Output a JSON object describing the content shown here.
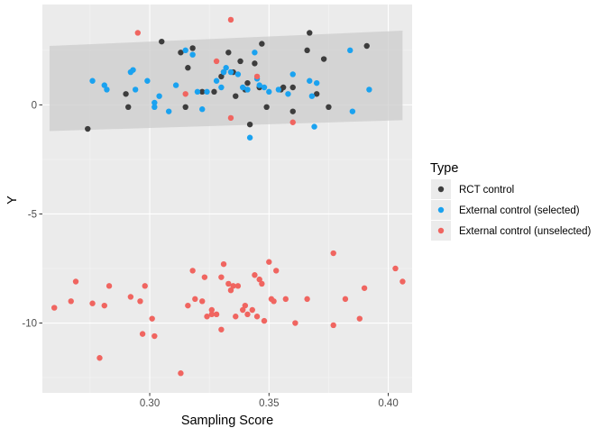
{
  "chart_data": {
    "type": "scatter",
    "title": "",
    "xlabel": "Sampling Score",
    "ylabel": "Y",
    "xlim": [
      0.255,
      0.41
    ],
    "ylim": [
      -13.2,
      4.6
    ],
    "x_ticks": [
      0.3,
      0.35,
      0.4
    ],
    "x_tick_labels": [
      "0.30",
      "0.35",
      "0.40"
    ],
    "y_ticks": [
      0,
      -5,
      -10
    ],
    "y_tick_labels": [
      "0",
      "-5",
      "-10"
    ],
    "grid": true,
    "legend": {
      "title": "Type",
      "position": "right",
      "entries": [
        "RCT control",
        "External control (selected)",
        "External control (unselected)"
      ]
    },
    "confidence_band": {
      "x": [
        0.258,
        0.406
      ],
      "upper": [
        2.7,
        3.4
      ],
      "lower": [
        -1.2,
        -0.7
      ],
      "fill": "#cccccc"
    },
    "series": [
      {
        "name": "RCT control",
        "color": "#3d3d3d",
        "points": [
          [
            0.274,
            -1.1
          ],
          [
            0.29,
            0.5
          ],
          [
            0.291,
            -0.1
          ],
          [
            0.305,
            2.9
          ],
          [
            0.313,
            2.4
          ],
          [
            0.315,
            -0.1
          ],
          [
            0.316,
            1.7
          ],
          [
            0.318,
            2.6
          ],
          [
            0.322,
            0.6
          ],
          [
            0.327,
            0.6
          ],
          [
            0.33,
            1.3
          ],
          [
            0.331,
            1.5
          ],
          [
            0.333,
            2.4
          ],
          [
            0.335,
            1.5
          ],
          [
            0.336,
            0.4
          ],
          [
            0.338,
            2.0
          ],
          [
            0.34,
            0.7
          ],
          [
            0.341,
            1.0
          ],
          [
            0.342,
            -0.9
          ],
          [
            0.344,
            1.9
          ],
          [
            0.346,
            0.8
          ],
          [
            0.347,
            2.8
          ],
          [
            0.349,
            -0.1
          ],
          [
            0.355,
            0.7
          ],
          [
            0.356,
            0.8
          ],
          [
            0.36,
            0.8
          ],
          [
            0.36,
            -0.3
          ],
          [
            0.366,
            2.5
          ],
          [
            0.367,
            3.3
          ],
          [
            0.37,
            0.5
          ],
          [
            0.373,
            2.1
          ],
          [
            0.375,
            -0.1
          ],
          [
            0.391,
            2.7
          ]
        ]
      },
      {
        "name": "External control (selected)",
        "color": "#1aa2f0",
        "points": [
          [
            0.276,
            1.1
          ],
          [
            0.281,
            0.9
          ],
          [
            0.282,
            0.7
          ],
          [
            0.292,
            1.5
          ],
          [
            0.293,
            1.6
          ],
          [
            0.294,
            0.7
          ],
          [
            0.299,
            1.1
          ],
          [
            0.302,
            -0.1
          ],
          [
            0.302,
            0.1
          ],
          [
            0.304,
            0.4
          ],
          [
            0.308,
            -0.3
          ],
          [
            0.311,
            0.9
          ],
          [
            0.315,
            2.5
          ],
          [
            0.318,
            2.3
          ],
          [
            0.32,
            0.6
          ],
          [
            0.322,
            -0.2
          ],
          [
            0.324,
            0.6
          ],
          [
            0.328,
            1.1
          ],
          [
            0.33,
            0.8
          ],
          [
            0.331,
            1.5
          ],
          [
            0.332,
            1.7
          ],
          [
            0.334,
            1.5
          ],
          [
            0.337,
            1.4
          ],
          [
            0.339,
            0.8
          ],
          [
            0.341,
            0.7
          ],
          [
            0.342,
            -1.5
          ],
          [
            0.344,
            2.4
          ],
          [
            0.345,
            1.2
          ],
          [
            0.346,
            0.9
          ],
          [
            0.348,
            0.8
          ],
          [
            0.35,
            0.6
          ],
          [
            0.354,
            0.7
          ],
          [
            0.358,
            0.5
          ],
          [
            0.36,
            1.4
          ],
          [
            0.367,
            1.1
          ],
          [
            0.368,
            0.4
          ],
          [
            0.369,
            -1.0
          ],
          [
            0.37,
            1.0
          ],
          [
            0.384,
            2.5
          ],
          [
            0.385,
            -0.3
          ],
          [
            0.392,
            0.7
          ]
        ]
      },
      {
        "name": "External control (unselected)",
        "color": "#f06560",
        "points": [
          [
            0.295,
            3.3
          ],
          [
            0.315,
            0.5
          ],
          [
            0.328,
            2.0
          ],
          [
            0.334,
            3.9
          ],
          [
            0.334,
            -0.6
          ],
          [
            0.345,
            1.3
          ],
          [
            0.36,
            -0.8
          ],
          [
            0.26,
            -9.3
          ],
          [
            0.267,
            -9.0
          ],
          [
            0.269,
            -8.1
          ],
          [
            0.276,
            -9.1
          ],
          [
            0.279,
            -11.6
          ],
          [
            0.281,
            -9.2
          ],
          [
            0.283,
            -8.3
          ],
          [
            0.292,
            -8.8
          ],
          [
            0.296,
            -9.0
          ],
          [
            0.297,
            -10.5
          ],
          [
            0.298,
            -8.3
          ],
          [
            0.301,
            -9.8
          ],
          [
            0.302,
            -10.6
          ],
          [
            0.313,
            -12.3
          ],
          [
            0.316,
            -9.2
          ],
          [
            0.318,
            -7.6
          ],
          [
            0.319,
            -8.9
          ],
          [
            0.322,
            -9.0
          ],
          [
            0.323,
            -7.9
          ],
          [
            0.324,
            -9.7
          ],
          [
            0.326,
            -9.6
          ],
          [
            0.326,
            -9.4
          ],
          [
            0.328,
            -9.6
          ],
          [
            0.33,
            -10.3
          ],
          [
            0.33,
            -7.9
          ],
          [
            0.331,
            -7.3
          ],
          [
            0.333,
            -8.2
          ],
          [
            0.334,
            -8.5
          ],
          [
            0.335,
            -8.3
          ],
          [
            0.336,
            -9.7
          ],
          [
            0.337,
            -8.3
          ],
          [
            0.339,
            -9.4
          ],
          [
            0.34,
            -9.2
          ],
          [
            0.341,
            -9.6
          ],
          [
            0.343,
            -9.4
          ],
          [
            0.344,
            -7.8
          ],
          [
            0.345,
            -9.7
          ],
          [
            0.346,
            -8.0
          ],
          [
            0.347,
            -8.2
          ],
          [
            0.348,
            -9.9
          ],
          [
            0.35,
            -7.2
          ],
          [
            0.351,
            -8.9
          ],
          [
            0.352,
            -9.0
          ],
          [
            0.353,
            -7.6
          ],
          [
            0.357,
            -8.9
          ],
          [
            0.361,
            -10.0
          ],
          [
            0.366,
            -8.9
          ],
          [
            0.377,
            -6.8
          ],
          [
            0.377,
            -10.1
          ],
          [
            0.382,
            -8.9
          ],
          [
            0.388,
            -9.8
          ],
          [
            0.39,
            -8.4
          ],
          [
            0.403,
            -7.5
          ],
          [
            0.406,
            -8.1
          ]
        ]
      }
    ]
  }
}
